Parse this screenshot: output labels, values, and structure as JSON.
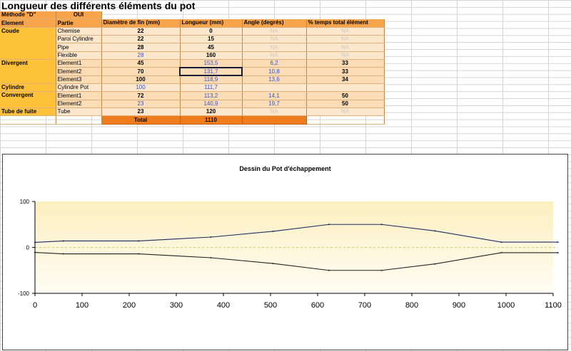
{
  "title": "Longueur des différents éléments du pot",
  "methode": {
    "label": "Méthode \"D\"",
    "value": "OUI"
  },
  "headers": [
    "Element",
    "Partie",
    "Diamètre de fin (mm)",
    "Longueur (mm)",
    "Angle (degrés)",
    "% temps total élément"
  ],
  "rows": [
    {
      "element": "Coude",
      "partie": "Chemise",
      "diametre": "22",
      "longueur": "0",
      "angle": "NA",
      "pct": "NA"
    },
    {
      "element": "",
      "partie": "Paroi Cylindre",
      "diametre": "22",
      "longueur": "15",
      "angle": "NA",
      "pct": "NA"
    },
    {
      "element": "",
      "partie": "Pipe",
      "diametre": "28",
      "longueur": "45",
      "angle": "NA",
      "pct": "NA"
    },
    {
      "element": "",
      "partie": "Flexible",
      "diametre": "28",
      "longueur": "160",
      "angle": "NA",
      "pct": "NA"
    },
    {
      "element": "Divergent",
      "partie": "Element1",
      "diametre": "45",
      "longueur": "153,5",
      "angle": "6,2",
      "pct": "33"
    },
    {
      "element": "",
      "partie": "Element2",
      "diametre": "70",
      "longueur": "131,7",
      "angle": "10,8",
      "pct": "33"
    },
    {
      "element": "",
      "partie": "Element3",
      "diametre": "100",
      "longueur": "118,9",
      "angle": "13,6",
      "pct": "34"
    },
    {
      "element": "Cylindre",
      "partie": "Cylindre Pot",
      "diametre": "100",
      "longueur": "111,7",
      "angle": "",
      "pct": ""
    },
    {
      "element": "Convergent",
      "partie": "Element1",
      "diametre": "72",
      "longueur": "113,2",
      "angle": "14,1",
      "pct": "50"
    },
    {
      "element": "",
      "partie": "Element2",
      "diametre": "23",
      "longueur": "140,9",
      "angle": "19,7",
      "pct": "50"
    },
    {
      "element": "Tube de fuite",
      "partie": "Tube",
      "diametre": "23",
      "longueur": "120",
      "angle": "NA",
      "pct": "NA"
    }
  ],
  "total": {
    "label": "Total",
    "value": "1110"
  },
  "colors": {
    "header": "#f7a44a",
    "element": "#fdc13a",
    "band": "#fcdcb5",
    "total": "#ef7c1c",
    "blue_value": "#3355cc"
  },
  "chart_data": {
    "type": "line",
    "title": "Dessin du Pot d'échappement",
    "xlabel": "",
    "ylabel": "",
    "xlim": [
      0,
      1100
    ],
    "ylim": [
      -100,
      100
    ],
    "xticks": [
      0,
      100,
      200,
      300,
      400,
      500,
      600,
      700,
      800,
      900,
      1000,
      1100
    ],
    "yticks": [
      -100,
      0,
      100
    ],
    "grid": false,
    "legend": "none",
    "series": [
      {
        "x": [
          0,
          60,
          220,
          373.5,
          505.2,
          624.1,
          735.8,
          849,
          989.9,
          1110
        ],
        "y": [
          11,
          14,
          14,
          22.5,
          35,
          50,
          50,
          36,
          11.5,
          11.5
        ]
      },
      {
        "x": [
          0,
          60,
          220,
          373.5,
          505.2,
          624.1,
          735.8,
          849,
          989.9,
          1110
        ],
        "y": [
          -11,
          -14,
          -14,
          -22.5,
          -35,
          -50,
          -50,
          -36,
          -11.5,
          -11.5
        ]
      },
      {
        "x": [
          0,
          1110
        ],
        "y": [
          0,
          0
        ],
        "style": "dashed"
      }
    ]
  }
}
